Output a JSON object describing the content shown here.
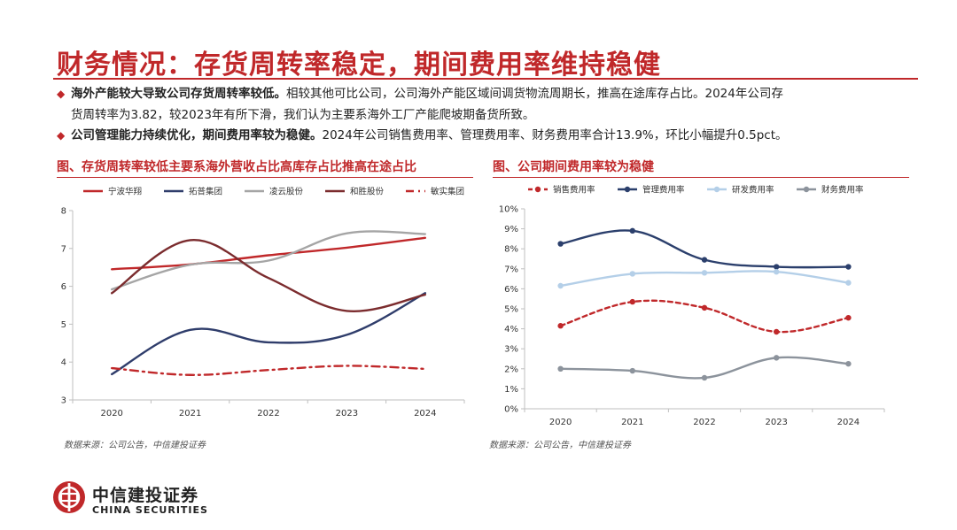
{
  "title": "财务情况：存货周转率稳定，期间费用率维持稳健",
  "bullets": [
    {
      "marker": "◆",
      "bold": "海外产能较大导致公司存货周转率较低。",
      "text_line1": "相较其他可比公司，公司海外产能区域间调货物流周期长，推高在途库存占比。2024年公司存",
      "text_line2": "货周转率为3.82，较2023年有所下滑，我们认为主要系海外工厂产能爬坡期备货所致。"
    },
    {
      "marker": "◆",
      "bold": "公司管理能力持续优化，期间费用率较为稳健。",
      "text": "2024年公司销售费用率、管理费用率、财务费用率合计13.9%，环比小幅提升0.5pct。"
    }
  ],
  "left_chart": {
    "heading": "图、存货周转率较低主要系海外营收占比高库存占比推高在途占比",
    "source": "数据来源：公司公告，中信建投证券"
  },
  "right_chart": {
    "heading": "图、公司期间费用率较为稳健",
    "source": "数据来源：公司公告，中信建投证券"
  },
  "logo": {
    "name_cn": "中信建投证券",
    "name_en": "CHINA SECURITIES"
  },
  "chart_data": [
    {
      "type": "line",
      "title": "图、存货周转率较低主要系海外营收占比高库存占比推高在途占比",
      "categories": [
        "2020",
        "2021",
        "2022",
        "2023",
        "2024"
      ],
      "ylim": [
        3,
        8
      ],
      "yticks": [
        "3",
        "4",
        "5",
        "6",
        "7",
        "8"
      ],
      "legend_position": "top",
      "series": [
        {
          "name": "宁波华翔",
          "color": "#c0282a",
          "dash": "solid",
          "markers": false,
          "values": [
            6.45,
            6.58,
            6.82,
            7.02,
            7.28
          ]
        },
        {
          "name": "拓普集团",
          "color": "#2f3d6b",
          "dash": "solid",
          "markers": false,
          "values": [
            3.68,
            4.85,
            4.52,
            4.72,
            5.82
          ]
        },
        {
          "name": "凌云股份",
          "color": "#a5a5a5",
          "dash": "solid",
          "markers": false,
          "values": [
            5.92,
            6.57,
            6.68,
            7.4,
            7.38
          ]
        },
        {
          "name": "和胜股份",
          "color": "#7b2c2e",
          "dash": "solid",
          "markers": false,
          "values": [
            5.82,
            7.22,
            6.22,
            5.35,
            5.78
          ]
        },
        {
          "name": "敏实集团",
          "color": "#c0282a",
          "dash": "dashdot",
          "markers": false,
          "values": [
            3.84,
            3.66,
            3.79,
            3.9,
            3.82
          ]
        }
      ]
    },
    {
      "type": "line",
      "title": "图、公司期间费用率较为稳健",
      "categories": [
        "2020",
        "2021",
        "2022",
        "2023",
        "2024"
      ],
      "ylim": [
        0,
        10
      ],
      "yticks": [
        "0%",
        "1%",
        "2%",
        "3%",
        "4%",
        "5%",
        "6%",
        "7%",
        "8%",
        "9%",
        "10%"
      ],
      "legend_position": "top",
      "series": [
        {
          "name": "销售费用率",
          "color": "#c0282a",
          "dash": "dashed",
          "markers": true,
          "values": [
            4.15,
            5.35,
            5.05,
            3.85,
            4.55
          ]
        },
        {
          "name": "管理费用率",
          "color": "#2b3f6c",
          "dash": "solid",
          "markers": true,
          "values": [
            8.25,
            8.9,
            7.45,
            7.1,
            7.1
          ]
        },
        {
          "name": "研发费用率",
          "color": "#b4cfe8",
          "dash": "solid",
          "markers": true,
          "values": [
            6.15,
            6.75,
            6.8,
            6.85,
            6.3
          ]
        },
        {
          "name": "财务费用率",
          "color": "#8c939c",
          "dash": "solid",
          "markers": true,
          "values": [
            2.0,
            1.9,
            1.55,
            2.55,
            2.25
          ]
        }
      ]
    }
  ]
}
